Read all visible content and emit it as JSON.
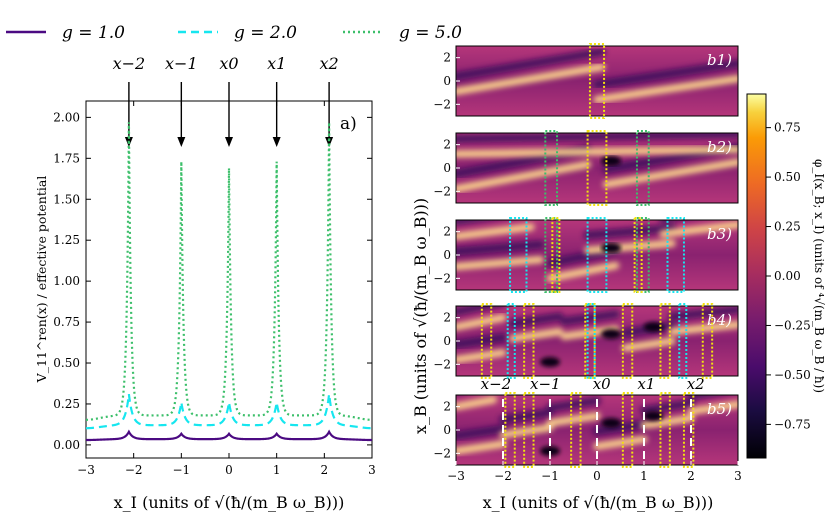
{
  "legend": [
    {
      "label": "g = 1.0",
      "color": "#4b0a82",
      "dash": "solid"
    },
    {
      "label": "g = 2.0",
      "color": "#16e6ef",
      "dash": "dashed"
    },
    {
      "label": "g = 5.0",
      "color": "#3cbf6a",
      "dash": "dotted"
    }
  ],
  "colors": {
    "g1": "#4b0a82",
    "g2": "#16e6ef",
    "g5": "#3cbf6a",
    "box_yellow": "#f2e20f",
    "box_cyan": "#16e6ef",
    "box_green": "#3cbf6a",
    "dash_white": "#ffffff"
  },
  "chart_data": [
    {
      "id": "a",
      "type": "line",
      "panel_label": "a)",
      "xlabel": "x_I (units of √(ħ/(m_B ω_B)))",
      "ylabel": "V_11^ren(x) / effective potential",
      "xlim": [
        -3,
        3
      ],
      "ylim": [
        -0.08,
        2.1
      ],
      "xticks": [
        -3,
        -2,
        -1,
        0,
        1,
        2,
        3
      ],
      "yticks": [
        0.0,
        0.25,
        0.5,
        0.75,
        1.0,
        1.25,
        1.5,
        1.75,
        2.0
      ],
      "ytick_labels": [
        "0.00",
        "0.25",
        "0.50",
        "0.75",
        "1.00",
        "1.25",
        "1.50",
        "1.75",
        "2.00"
      ],
      "peak_positions": [
        -2.1,
        -1.0,
        0.0,
        1.0,
        2.1
      ],
      "arrow_labels": [
        "x−2",
        "x−1",
        "x0",
        "x1",
        "x2"
      ],
      "series": [
        {
          "name": "g = 1.0",
          "base": 0.035,
          "edge": 0.0,
          "peaks": [
            0.08,
            0.068,
            0.068,
            0.068,
            0.08
          ],
          "width": 0.08
        },
        {
          "name": "g = 2.0",
          "base": 0.12,
          "edge": 0.0,
          "peaks": [
            0.31,
            0.26,
            0.26,
            0.26,
            0.31
          ],
          "width": 0.075
        },
        {
          "name": "g = 5.0",
          "base": 0.18,
          "edge": 0.0,
          "peaks": [
            1.97,
            1.73,
            1.69,
            1.73,
            1.97
          ],
          "width": 0.045
        }
      ]
    },
    {
      "id": "b",
      "type": "heatmap",
      "panel_labels": [
        "b1)",
        "b2)",
        "b3)",
        "b4)",
        "b5)"
      ],
      "xlabel": "x_I (units of √(ħ/(m_B ω_B)))",
      "ylabel": "x_B (units of √(ħ/(m_B ω_B)))",
      "xlim": [
        -3,
        3
      ],
      "ylim": [
        -3,
        3
      ],
      "xticks": [
        -3,
        -2,
        -1,
        0,
        1,
        2,
        3
      ],
      "yticks": [
        -2,
        0,
        2
      ],
      "colorbar": {
        "label": "φ_I(x_B; x_I) (units of ⁴√(m_B ω_B / ħ))",
        "range": [
          -0.92,
          0.92
        ],
        "ticks": [
          0.75,
          0.5,
          0.25,
          0.0,
          -0.25,
          -0.5,
          -0.75
        ],
        "tick_labels": [
          "0.75",
          "0.50",
          "0.25",
          "0.00",
          "−0.25",
          "−0.50",
          "−0.75"
        ]
      },
      "dashed_positions": [
        -2.0,
        -1.0,
        0.0,
        1.0,
        2.0
      ],
      "b5_labels": [
        "x−2",
        "x−1",
        "x0",
        "x1",
        "x2"
      ],
      "b5_label_positions": [
        -2.15,
        -1.1,
        0.1,
        1.05,
        2.1
      ],
      "boxes": [
        {
          "panel": 1,
          "color": "yellow",
          "ranges": [
            [
              -0.15,
              0.15
            ]
          ]
        },
        {
          "panel": 2,
          "color": "yellow",
          "ranges": [
            [
              -0.2,
              0.2
            ]
          ]
        },
        {
          "panel": 2,
          "color": "green",
          "ranges": [
            [
              -1.1,
              -0.85
            ],
            [
              0.85,
              1.1
            ]
          ]
        },
        {
          "panel": 3,
          "color": "cyan",
          "ranges": [
            [
              -1.85,
              -1.5
            ],
            [
              -0.2,
              0.2
            ],
            [
              1.5,
              1.85
            ]
          ]
        },
        {
          "panel": 3,
          "color": "green",
          "ranges": [
            [
              -1.1,
              -0.85
            ],
            [
              0.85,
              1.1
            ]
          ]
        },
        {
          "panel": 3,
          "color": "yellow",
          "ranges": [
            [
              -0.95,
              -0.8
            ],
            [
              0.8,
              0.95
            ]
          ]
        },
        {
          "panel": 4,
          "color": "yellow",
          "ranges": [
            [
              -2.45,
              -2.25
            ],
            [
              -1.55,
              -1.35
            ],
            [
              -0.25,
              -0.05
            ],
            [
              0.55,
              0.75
            ],
            [
              1.35,
              1.55
            ],
            [
              2.25,
              2.45
            ]
          ]
        },
        {
          "panel": 4,
          "color": "cyan",
          "ranges": [
            [
              -1.9,
              -1.75
            ],
            [
              -0.2,
              -0.05
            ],
            [
              1.75,
              1.9
            ]
          ]
        },
        {
          "panel": 5,
          "color": "yellow",
          "ranges": [
            [
              -1.95,
              -1.75
            ],
            [
              -1.55,
              -1.35
            ],
            [
              -0.55,
              -0.35
            ],
            [
              0.55,
              0.75
            ],
            [
              1.35,
              1.55
            ],
            [
              1.85,
              2.05
            ]
          ]
        }
      ]
    }
  ]
}
